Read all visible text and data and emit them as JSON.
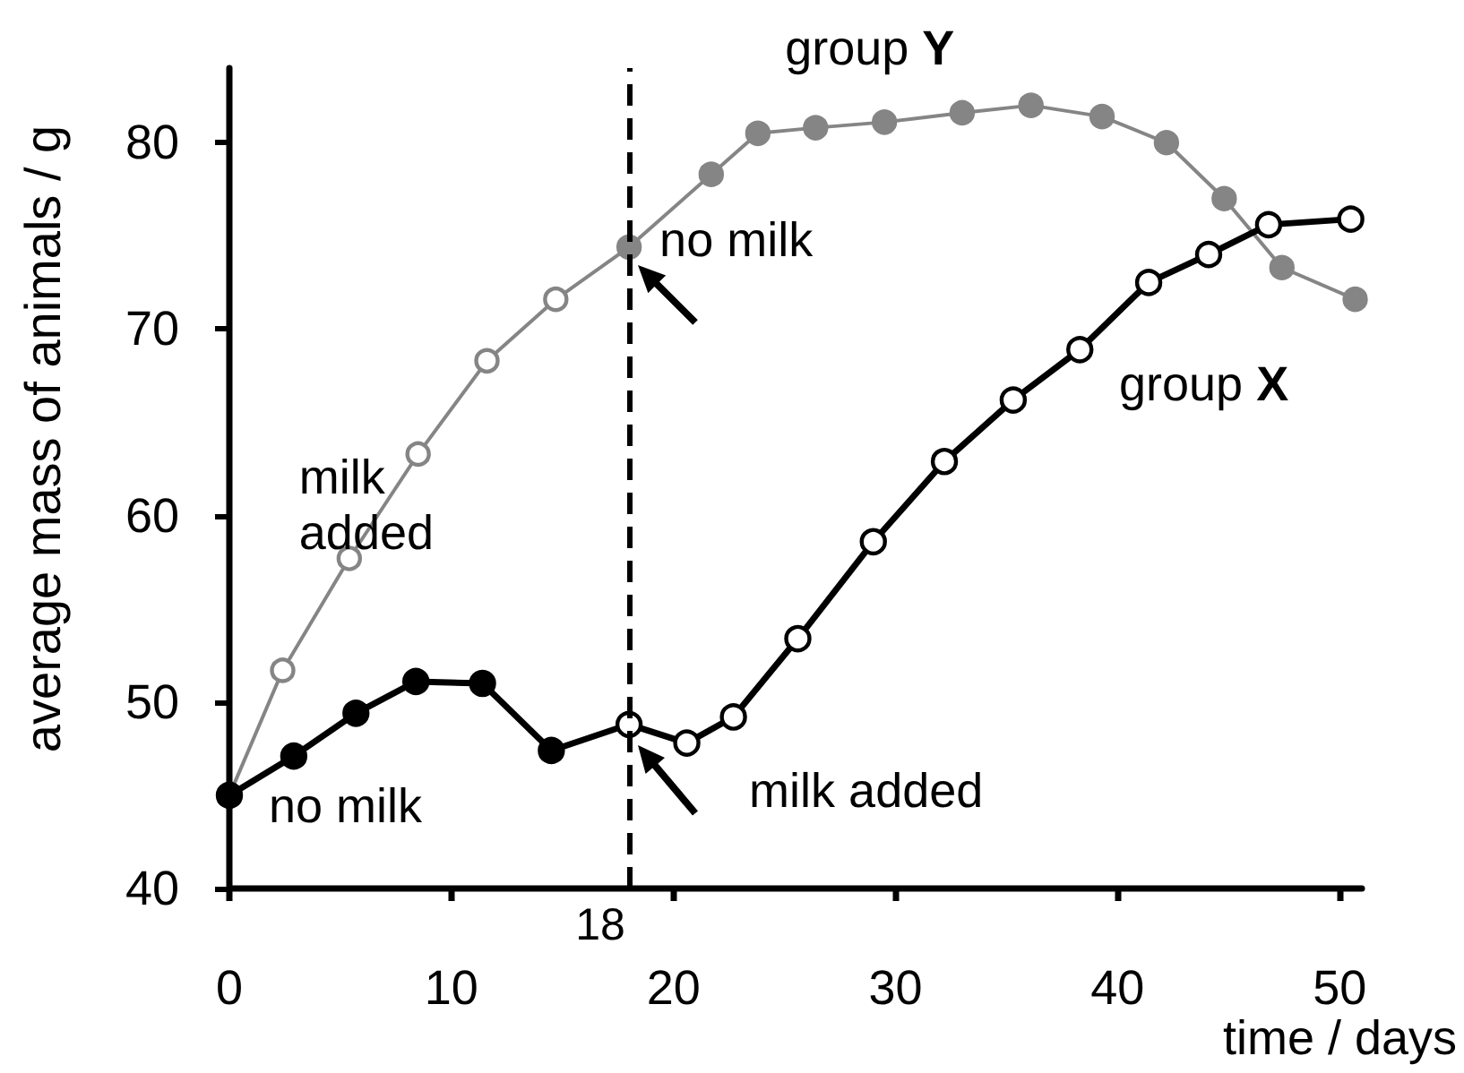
{
  "chart_data": {
    "type": "line",
    "xlabel": "time / days",
    "ylabel": "average mass of animals / g",
    "xlim": [
      0,
      51
    ],
    "xticks": [
      0,
      10,
      20,
      30,
      40,
      50
    ],
    "ylim": [
      40,
      84
    ],
    "yticks": [
      40,
      50,
      60,
      70,
      80
    ],
    "marker": "circle",
    "line_style": "solid",
    "series": [
      {
        "name": "group Y",
        "color": "#858585",
        "x": [
          0,
          2.4,
          5.4,
          8.5,
          11.6,
          14.7,
          18,
          21.7,
          23.8,
          26.4,
          29.5,
          33.0,
          36.1,
          39.3,
          42.2,
          44.8,
          47.4,
          50.7
        ],
        "values": [
          45.0,
          51.7,
          57.7,
          63.3,
          68.3,
          71.6,
          74.4,
          78.3,
          80.5,
          80.8,
          81.1,
          81.6,
          82.0,
          81.4,
          80.0,
          77.0,
          73.3,
          71.6
        ],
        "colors": [
          "#ffffff",
          "#ffffff",
          "#ffffff",
          "#ffffff",
          "#ffffff",
          "#ffffff",
          "#858585",
          "#858585",
          "#858585",
          "#858585",
          "#858585",
          "#858585",
          "#858585",
          "#858585",
          "#858585",
          "#858585",
          "#858585",
          "#858585"
        ]
      },
      {
        "name": "group X",
        "color": "#000000",
        "x": [
          0,
          2.9,
          5.7,
          8.4,
          11.4,
          14.5,
          18,
          20.6,
          22.7,
          25.6,
          29.0,
          32.2,
          35.3,
          38.3,
          41.4,
          44.1,
          46.8,
          50.5
        ],
        "values": [
          45.0,
          47.1,
          49.4,
          51.1,
          51.0,
          47.4,
          48.8,
          47.8,
          49.2,
          53.4,
          58.6,
          62.9,
          66.2,
          68.9,
          72.5,
          74.0,
          75.6,
          75.9
        ],
        "colors": [
          "#000000",
          "#000000",
          "#000000",
          "#000000",
          "#000000",
          "#000000",
          "#ffffff",
          "#ffffff",
          "#ffffff",
          "#ffffff",
          "#ffffff",
          "#ffffff",
          "#ffffff",
          "#ffffff",
          "#ffffff",
          "#ffffff",
          "#ffffff",
          "#ffffff"
        ]
      }
    ],
    "ref_lines": [
      {
        "axis": "x",
        "value": 18,
        "label": "18",
        "color": "#000000",
        "line_style": "dashed"
      }
    ],
    "annotations": [
      {
        "text": "milk added",
        "x": 5.4,
        "y": 57.7
      },
      {
        "text": "no milk",
        "x": 0,
        "y": 45.0
      },
      {
        "text": "no milk",
        "x": 18,
        "y": 74.4
      },
      "milk added"
    ]
  }
}
